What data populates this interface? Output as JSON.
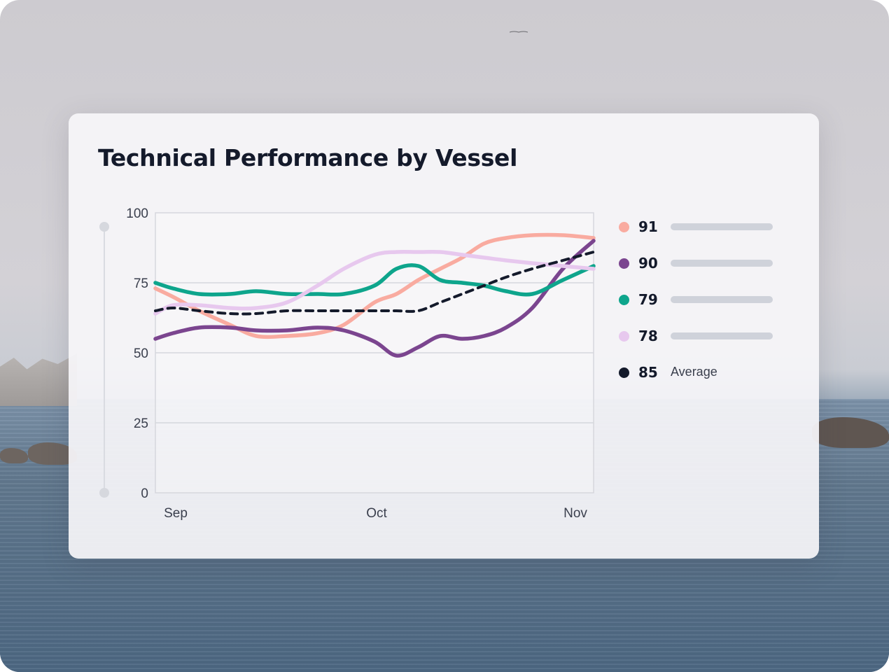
{
  "chart_data": {
    "type": "line",
    "title": "Technical Performance by Vessel",
    "ylim": [
      0,
      100
    ],
    "y_ticks": [
      "100",
      "75",
      "50",
      "25",
      "0"
    ],
    "x_ticks": [
      "Sep",
      "Oct",
      "Nov"
    ],
    "grid": true,
    "legend_position": "right",
    "x": [
      0,
      0.04,
      0.1,
      0.17,
      0.23,
      0.3,
      0.37,
      0.43,
      0.5,
      0.55,
      0.6,
      0.65,
      0.7,
      0.75,
      0.8,
      0.86,
      0.93,
      1.0
    ],
    "series": [
      {
        "name": "91",
        "color": "#f9aba0",
        "dash": false,
        "values": [
          73,
          70,
          65,
          60,
          56,
          56,
          57,
          60,
          68,
          71,
          76,
          80,
          84,
          89,
          91,
          92,
          92,
          91
        ]
      },
      {
        "name": "90",
        "color": "#7b458f",
        "dash": false,
        "values": [
          55,
          57,
          59,
          59,
          58,
          58,
          59,
          58,
          54,
          49,
          52,
          56,
          55,
          56,
          59,
          66,
          80,
          90
        ]
      },
      {
        "name": "79",
        "color": "#0ea58c",
        "dash": false,
        "values": [
          75,
          73,
          71,
          71,
          72,
          71,
          71,
          71,
          74,
          80,
          81,
          76,
          75,
          74,
          72,
          71,
          76,
          81
        ]
      },
      {
        "name": "78",
        "color": "#e7c8ee",
        "dash": false,
        "values": [
          64,
          67,
          67,
          66,
          66,
          68,
          74,
          80,
          85,
          86,
          86,
          86,
          85,
          84,
          83,
          82,
          81,
          80
        ]
      },
      {
        "name": "Average",
        "color": "#141a2b",
        "dash": true,
        "values": [
          65,
          66,
          65,
          64,
          64,
          65,
          65,
          65,
          65,
          65,
          65,
          68,
          71,
          74,
          77,
          80,
          83,
          86
        ]
      }
    ]
  },
  "legend": [
    {
      "value": "91",
      "color": "#f9aba0",
      "label": ""
    },
    {
      "value": "90",
      "color": "#7b458f",
      "label": ""
    },
    {
      "value": "79",
      "color": "#0ea58c",
      "label": ""
    },
    {
      "value": "78",
      "color": "#e7c8ee",
      "label": ""
    },
    {
      "value": "85",
      "color": "#141a2b",
      "label": "Average"
    }
  ]
}
